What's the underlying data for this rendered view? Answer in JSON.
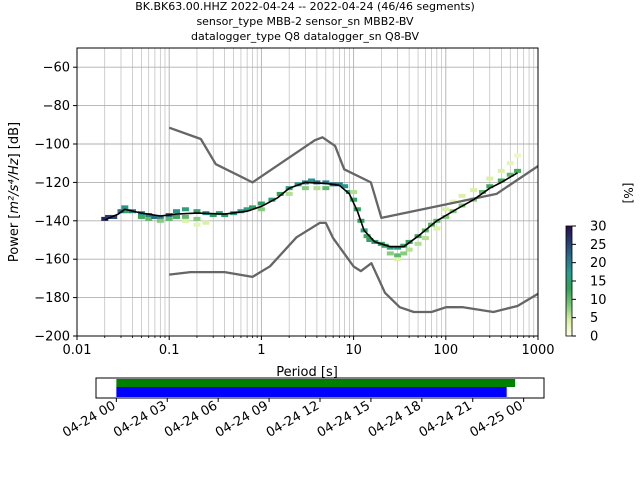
{
  "chart_data": {
    "type": "heatmap",
    "title_lines": [
      "BK.BK63.00.HHZ   2022-04-24 -- 2022-04-24  (46/46 segments)",
      "sensor_type MBB-2 sensor_sn MBB2-BV",
      "datalogger_type Q8 datalogger_sn Q8-BV"
    ],
    "xlabel": "Period [s]",
    "ylabel_prefix": "Power [",
    "ylabel_units": "m²/s⁴/Hz",
    "ylabel_suffix": "] [dB]",
    "x_scale": "log",
    "xlim": [
      0.01,
      1000
    ],
    "ylim": [
      -200,
      -50
    ],
    "x_ticks": [
      {
        "value": 0.01,
        "label": "0.01"
      },
      {
        "value": 0.1,
        "label": "0.1"
      },
      {
        "value": 1,
        "label": "1"
      },
      {
        "value": 10,
        "label": "10"
      },
      {
        "value": 100,
        "label": "100"
      },
      {
        "value": 1000,
        "label": "1000"
      }
    ],
    "y_ticks": [
      {
        "value": -60,
        "label": "−60"
      },
      {
        "value": -80,
        "label": "−80"
      },
      {
        "value": -100,
        "label": "−100"
      },
      {
        "value": -120,
        "label": "−120"
      },
      {
        "value": -140,
        "label": "−140"
      },
      {
        "value": -160,
        "label": "−160"
      },
      {
        "value": -180,
        "label": "−180"
      },
      {
        "value": -200,
        "label": "−200"
      }
    ],
    "grid": true,
    "colorbar": {
      "label": "[%]",
      "range": [
        0,
        30
      ],
      "ticks": [
        {
          "value": 0,
          "label": "0"
        },
        {
          "value": 5,
          "label": "5"
        },
        {
          "value": 10,
          "label": "10"
        },
        {
          "value": 15,
          "label": "15"
        },
        {
          "value": 20,
          "label": "20"
        },
        {
          "value": 25,
          "label": "25"
        },
        {
          "value": 30,
          "label": "30"
        }
      ],
      "colormap": [
        "#ffffe5",
        "#d9f0a3",
        "#78c679",
        "#31a354",
        "#2a9d8f",
        "#2b6f8a",
        "#253d72",
        "#2b0f4b"
      ]
    },
    "high_noise_model": [
      [
        0.1,
        -91.5
      ],
      [
        0.22,
        -97.4
      ],
      [
        0.32,
        -110.5
      ],
      [
        0.8,
        -120
      ],
      [
        3.8,
        -98
      ],
      [
        4.6,
        -96.5
      ],
      [
        6.3,
        -101
      ],
      [
        7.9,
        -113.2
      ],
      [
        15.4,
        -120
      ],
      [
        20,
        -138.5
      ],
      [
        354.8,
        -126
      ],
      [
        1000,
        -111.5
      ]
    ],
    "low_noise_model": [
      [
        0.1,
        -168
      ],
      [
        0.17,
        -166.7
      ],
      [
        0.4,
        -166.7
      ],
      [
        0.8,
        -169.2
      ],
      [
        1.24,
        -163.7
      ],
      [
        2.4,
        -148.6
      ],
      [
        4.3,
        -141.1
      ],
      [
        5,
        -141.1
      ],
      [
        6,
        -149
      ],
      [
        10,
        -163.8
      ],
      [
        12,
        -166.2
      ],
      [
        15.6,
        -162.1
      ],
      [
        21.9,
        -177.5
      ],
      [
        31.6,
        -185
      ],
      [
        45,
        -187.5
      ],
      [
        70,
        -187.5
      ],
      [
        101,
        -185
      ],
      [
        154,
        -185
      ],
      [
        328,
        -187.5
      ],
      [
        600,
        -184.4
      ],
      [
        1000,
        -178
      ]
    ],
    "mean_psd": [
      [
        0.02,
        -139.5
      ],
      [
        0.028,
        -136.5
      ],
      [
        0.033,
        -134
      ],
      [
        0.05,
        -136
      ],
      [
        0.08,
        -137.5
      ],
      [
        0.12,
        -136.5
      ],
      [
        0.2,
        -136
      ],
      [
        0.4,
        -136.5
      ],
      [
        0.7,
        -135
      ],
      [
        1,
        -132.5
      ],
      [
        1.5,
        -128
      ],
      [
        2,
        -123
      ],
      [
        3,
        -120
      ],
      [
        5,
        -120.5
      ],
      [
        7,
        -121.5
      ],
      [
        9,
        -126
      ],
      [
        11,
        -135
      ],
      [
        13,
        -145
      ],
      [
        17,
        -151
      ],
      [
        25,
        -153.5
      ],
      [
        35,
        -153.5
      ],
      [
        50,
        -148
      ],
      [
        80,
        -140
      ],
      [
        130,
        -134
      ],
      [
        200,
        -129
      ],
      [
        300,
        -123
      ],
      [
        400,
        -120
      ],
      [
        600,
        -115
      ]
    ],
    "psd_samples": [
      {
        "period": 0.02,
        "power": -139,
        "pct": 28
      },
      {
        "period": 0.022,
        "power": -138,
        "pct": 26
      },
      {
        "period": 0.025,
        "power": -138,
        "pct": 25
      },
      {
        "period": 0.03,
        "power": -135,
        "pct": 22
      },
      {
        "period": 0.033,
        "power": -133,
        "pct": 18
      },
      {
        "period": 0.035,
        "power": -135,
        "pct": 14
      },
      {
        "period": 0.04,
        "power": -135,
        "pct": 20
      },
      {
        "period": 0.05,
        "power": -136,
        "pct": 18
      },
      {
        "period": 0.05,
        "power": -138,
        "pct": 12
      },
      {
        "period": 0.06,
        "power": -137,
        "pct": 20
      },
      {
        "period": 0.06,
        "power": -139,
        "pct": 10
      },
      {
        "period": 0.07,
        "power": -138,
        "pct": 22
      },
      {
        "period": 0.08,
        "power": -138,
        "pct": 20
      },
      {
        "period": 0.08,
        "power": -140,
        "pct": 8
      },
      {
        "period": 0.1,
        "power": -137,
        "pct": 22
      },
      {
        "period": 0.1,
        "power": -139,
        "pct": 10
      },
      {
        "period": 0.12,
        "power": -135,
        "pct": 18
      },
      {
        "period": 0.12,
        "power": -138,
        "pct": 12
      },
      {
        "period": 0.15,
        "power": -134,
        "pct": 16
      },
      {
        "period": 0.15,
        "power": -138,
        "pct": 10
      },
      {
        "period": 0.15,
        "power": -140,
        "pct": 4
      },
      {
        "period": 0.2,
        "power": -135,
        "pct": 14
      },
      {
        "period": 0.2,
        "power": -139,
        "pct": 8
      },
      {
        "period": 0.2,
        "power": -142,
        "pct": 3
      },
      {
        "period": 0.25,
        "power": -136,
        "pct": 18
      },
      {
        "period": 0.25,
        "power": -141,
        "pct": 4
      },
      {
        "period": 0.3,
        "power": -137,
        "pct": 14
      },
      {
        "period": 0.35,
        "power": -136,
        "pct": 16
      },
      {
        "period": 0.4,
        "power": -137,
        "pct": 14
      },
      {
        "period": 0.5,
        "power": -136,
        "pct": 16
      },
      {
        "period": 0.6,
        "power": -135,
        "pct": 18
      },
      {
        "period": 0.7,
        "power": -134,
        "pct": 16
      },
      {
        "period": 0.8,
        "power": -133,
        "pct": 14
      },
      {
        "period": 1.0,
        "power": -131,
        "pct": 14
      },
      {
        "period": 1.0,
        "power": -134,
        "pct": 8
      },
      {
        "period": 1.3,
        "power": -129,
        "pct": 16
      },
      {
        "period": 1.6,
        "power": -126,
        "pct": 14
      },
      {
        "period": 2.0,
        "power": -123,
        "pct": 16
      },
      {
        "period": 2.0,
        "power": -126,
        "pct": 6
      },
      {
        "period": 2.5,
        "power": -121,
        "pct": 18
      },
      {
        "period": 3.0,
        "power": -120,
        "pct": 20
      },
      {
        "period": 3.0,
        "power": -123,
        "pct": 8
      },
      {
        "period": 3.5,
        "power": -119,
        "pct": 18
      },
      {
        "period": 4.0,
        "power": -120,
        "pct": 22
      },
      {
        "period": 4.0,
        "power": -123,
        "pct": 6
      },
      {
        "period": 5.0,
        "power": -120,
        "pct": 20
      },
      {
        "period": 5.0,
        "power": -123,
        "pct": 10
      },
      {
        "period": 6.0,
        "power": -121,
        "pct": 22
      },
      {
        "period": 7.0,
        "power": -121,
        "pct": 20
      },
      {
        "period": 8.0,
        "power": -122,
        "pct": 18
      },
      {
        "period": 9.0,
        "power": -125,
        "pct": 16
      },
      {
        "period": 10,
        "power": -129,
        "pct": 14
      },
      {
        "period": 10,
        "power": -125,
        "pct": 6
      },
      {
        "period": 11,
        "power": -134,
        "pct": 14
      },
      {
        "period": 12,
        "power": -140,
        "pct": 14
      },
      {
        "period": 13,
        "power": -145,
        "pct": 16
      },
      {
        "period": 14,
        "power": -148,
        "pct": 12
      },
      {
        "period": 15,
        "power": -150,
        "pct": 14
      },
      {
        "period": 17,
        "power": -151,
        "pct": 16
      },
      {
        "period": 20,
        "power": -152,
        "pct": 14
      },
      {
        "period": 22,
        "power": -153,
        "pct": 14
      },
      {
        "period": 25,
        "power": -154,
        "pct": 16
      },
      {
        "period": 25,
        "power": -157,
        "pct": 8
      },
      {
        "period": 30,
        "power": -154,
        "pct": 16
      },
      {
        "period": 30,
        "power": -158,
        "pct": 10
      },
      {
        "period": 30,
        "power": -160,
        "pct": 4
      },
      {
        "period": 35,
        "power": -153,
        "pct": 14
      },
      {
        "period": 35,
        "power": -157,
        "pct": 8
      },
      {
        "period": 40,
        "power": -151,
        "pct": 14
      },
      {
        "period": 40,
        "power": -155,
        "pct": 6
      },
      {
        "period": 50,
        "power": -148,
        "pct": 12
      },
      {
        "period": 50,
        "power": -152,
        "pct": 6
      },
      {
        "period": 60,
        "power": -145,
        "pct": 10
      },
      {
        "period": 60,
        "power": -149,
        "pct": 6
      },
      {
        "period": 70,
        "power": -142,
        "pct": 10
      },
      {
        "period": 80,
        "power": -140,
        "pct": 10
      },
      {
        "period": 80,
        "power": -144,
        "pct": 4
      },
      {
        "period": 100,
        "power": -138,
        "pct": 8
      },
      {
        "period": 100,
        "power": -134,
        "pct": 4
      },
      {
        "period": 120,
        "power": -135,
        "pct": 8
      },
      {
        "period": 120,
        "power": -130,
        "pct": 3
      },
      {
        "period": 150,
        "power": -132,
        "pct": 8
      },
      {
        "period": 150,
        "power": -127,
        "pct": 4
      },
      {
        "period": 200,
        "power": -129,
        "pct": 8
      },
      {
        "period": 200,
        "power": -124,
        "pct": 4
      },
      {
        "period": 250,
        "power": -125,
        "pct": 10
      },
      {
        "period": 300,
        "power": -122,
        "pct": 12
      },
      {
        "period": 300,
        "power": -118,
        "pct": 4
      },
      {
        "period": 400,
        "power": -119,
        "pct": 12
      },
      {
        "period": 400,
        "power": -114,
        "pct": 4
      },
      {
        "period": 500,
        "power": -116,
        "pct": 10
      },
      {
        "period": 500,
        "power": -110,
        "pct": 3
      },
      {
        "period": 600,
        "power": -114,
        "pct": 12
      },
      {
        "period": 600,
        "power": -106,
        "pct": 2
      }
    ],
    "data_coverage": {
      "tick_labels": [
        "04-24 00",
        "04-24 03",
        "04-24 06",
        "04-24 09",
        "04-24 12",
        "04-24 15",
        "04-24 18",
        "04-24 21",
        "04-25 00"
      ],
      "tick_hours": [
        0,
        3,
        6,
        9,
        12,
        15,
        18,
        21,
        24
      ],
      "range_hours": [
        -1.2,
        25.2
      ],
      "green_span_hours": [
        0,
        23.5
      ],
      "blue_span_hours": [
        0,
        23.0
      ],
      "green_color": "#008000",
      "blue_color": "#0000ff"
    },
    "colors": {
      "noise_model": "#666666",
      "mean": "#000000",
      "grid": "#b0b0b0"
    }
  }
}
